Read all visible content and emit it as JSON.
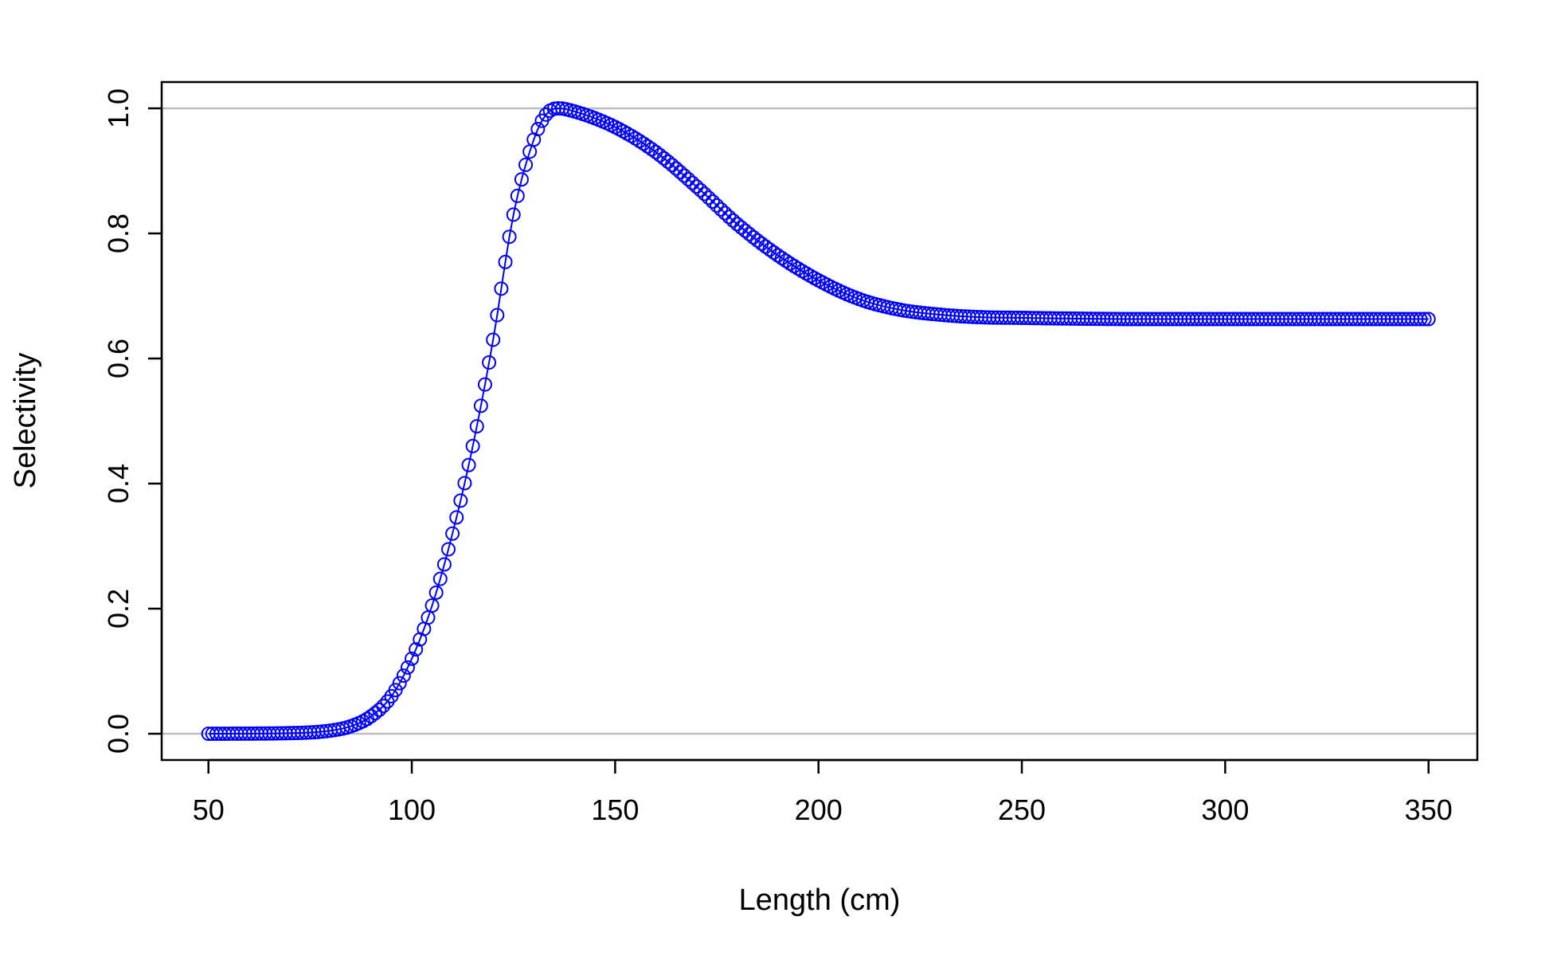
{
  "chart_data": {
    "type": "scatter",
    "title": "",
    "xlabel": "Length (cm)",
    "ylabel": "Selectivity",
    "xlim": [
      38.5,
      362
    ],
    "ylim": [
      -0.042,
      1.042
    ],
    "x_ticks": [
      50,
      100,
      150,
      200,
      250,
      300,
      350
    ],
    "x_tick_labels": [
      "50",
      "100",
      "150",
      "200",
      "250",
      "300",
      "350"
    ],
    "y_ticks": [
      0.0,
      0.2,
      0.4,
      0.6,
      0.8,
      1.0
    ],
    "y_tick_labels": [
      "0.0",
      "0.2",
      "0.4",
      "0.6",
      "0.8",
      "1.0"
    ],
    "reference_lines": [
      {
        "y": 0.0,
        "color": "#bebebe"
      },
      {
        "y": 1.0,
        "color": "#bebebe"
      }
    ],
    "grid": false,
    "legend": "none",
    "marker": "open-circle",
    "series": [
      {
        "color": "#0000ff",
        "x_start": 50,
        "x_end": 350,
        "x_step": 1,
        "profile_x": [
          50,
          70,
          80,
          85,
          90,
          95,
          100,
          105,
          110,
          115,
          120,
          125,
          130,
          133,
          136,
          140,
          150,
          160,
          170,
          180,
          190,
          200,
          210,
          220,
          230,
          240,
          250,
          260,
          280,
          300,
          350
        ],
        "profile_y": [
          0.0,
          0.001,
          0.005,
          0.012,
          0.028,
          0.06,
          0.12,
          0.205,
          0.32,
          0.46,
          0.63,
          0.83,
          0.95,
          0.99,
          1.0,
          0.995,
          0.97,
          0.93,
          0.875,
          0.815,
          0.765,
          0.725,
          0.695,
          0.678,
          0.67,
          0.666,
          0.665,
          0.664,
          0.663,
          0.663,
          0.663
        ]
      }
    ]
  }
}
